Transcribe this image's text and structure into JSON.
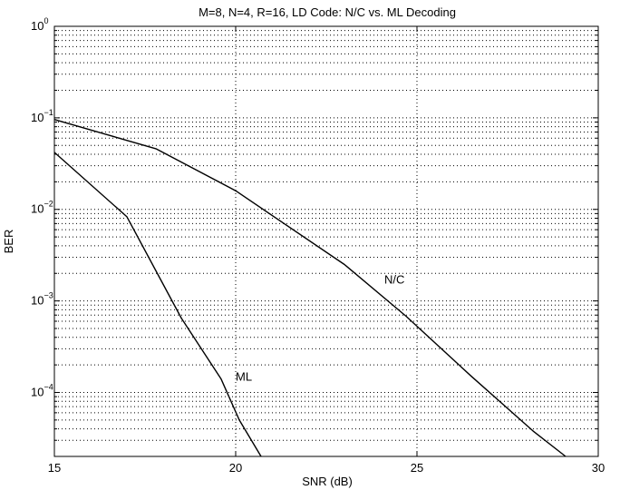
{
  "chart_data": {
    "type": "line",
    "title": "M=8, N=4, R=16, LD Code: N/C vs. ML Decoding",
    "xlabel": "SNR (dB)",
    "ylabel": "BER",
    "xlim": [
      15,
      30
    ],
    "ylim": [
      2e-05,
      1
    ],
    "yscale": "log",
    "grid": true,
    "x_ticks": [
      15,
      20,
      25,
      30
    ],
    "y_ticks": [
      {
        "value": 1,
        "base": "10",
        "exp": "0"
      },
      {
        "value": 0.1,
        "base": "10",
        "exp": "−1"
      },
      {
        "value": 0.01,
        "base": "10",
        "exp": "−2"
      },
      {
        "value": 0.001,
        "base": "10",
        "exp": "−3"
      },
      {
        "value": 0.0001,
        "base": "10",
        "exp": "−4"
      }
    ],
    "series": [
      {
        "name": "N/C",
        "x": [
          15,
          17.8,
          20,
          23,
          24.7,
          26.5,
          28.2,
          29.1
        ],
        "y": [
          0.096,
          0.046,
          0.016,
          0.0025,
          0.00068,
          0.00015,
          3.8e-05,
          2e-05
        ]
      },
      {
        "name": "ML",
        "x": [
          15,
          17,
          18.5,
          19.6,
          20.1,
          20.7
        ],
        "y": [
          0.042,
          0.0083,
          0.00065,
          0.00014,
          5e-05,
          2e-05
        ]
      }
    ],
    "annotations": [
      {
        "text": "N/C",
        "x": 24.1,
        "y": 0.00155
      },
      {
        "text": "ML",
        "x": 20.0,
        "y": 0.000135
      }
    ]
  }
}
